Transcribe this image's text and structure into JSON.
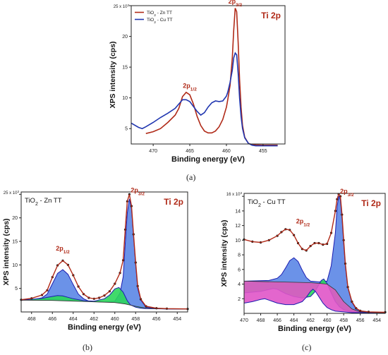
{
  "figure": {
    "captions": [
      "(a)",
      "(b)",
      "(c)"
    ]
  },
  "chart_data": [
    {
      "type": "line",
      "panel_caption": "(a)",
      "xlabel": "Binding energy (eV)",
      "ylabel": "XPS intensity (cps)",
      "xlim": [
        473,
        452
      ],
      "ylim": [
        2.5,
        25
      ],
      "y_multiplier_label": "25 x 10",
      "y_multiplier_exp": "3",
      "x_ticks": [
        470,
        465,
        460,
        455
      ],
      "y_ticks": [
        5,
        10,
        15,
        20,
        25
      ],
      "y_tick_labels": [
        "5",
        "10",
        "15",
        "20",
        ""
      ],
      "spectrum_label": "Ti 2p",
      "peak_labels": [
        {
          "base": "2p",
          "sub": "1/2",
          "x": 465.0,
          "y": 11.3
        },
        {
          "base": "2p",
          "sub": "3/2",
          "x": 458.8,
          "y": 25.0
        }
      ],
      "legend_position": "top-left",
      "series": [
        {
          "name": "TiO2 - Zn TT",
          "color": "#b02a18",
          "x": [
            471,
            470,
            469,
            468,
            467,
            466.5,
            466,
            465.5,
            465,
            464.5,
            464,
            463.5,
            463,
            462.5,
            462,
            461.5,
            461,
            460.5,
            460,
            459.8,
            459.5,
            459.2,
            459,
            458.8,
            458.6,
            458.4,
            458.2,
            458,
            457.8,
            457.5,
            457,
            456.5,
            456,
            455,
            454,
            453
          ],
          "y": [
            4.2,
            4.5,
            5.0,
            6.0,
            7.2,
            8.3,
            10.2,
            10.9,
            10.5,
            9.0,
            7.0,
            5.5,
            4.6,
            4.3,
            4.3,
            4.6,
            5.3,
            6.5,
            8.5,
            9.8,
            12.0,
            16.5,
            21.0,
            24.6,
            24.0,
            19.0,
            13.0,
            8.5,
            5.5,
            3.6,
            2.6,
            2.4,
            2.35,
            2.3,
            2.3,
            2.3
          ]
        },
        {
          "name": "TiO2 - Cu TT",
          "color": "#2036b0",
          "x": [
            473,
            472,
            471.5,
            471,
            470,
            469,
            468,
            467,
            466.5,
            466,
            465.5,
            465,
            464.5,
            464,
            463.5,
            463,
            462.5,
            462,
            461.5,
            461,
            460.5,
            460,
            459.8,
            459.5,
            459.2,
            459,
            458.8,
            458.6,
            458.4,
            458.2,
            458,
            457.8,
            457.5,
            457,
            456.5,
            456,
            455,
            454,
            453
          ],
          "y": [
            5.9,
            5.2,
            5.0,
            5.3,
            6.0,
            6.8,
            7.5,
            8.3,
            9.0,
            9.7,
            9.7,
            9.4,
            8.6,
            7.8,
            7.2,
            7.6,
            8.5,
            9.2,
            9.5,
            9.4,
            9.5,
            10.3,
            11.0,
            12.5,
            14.5,
            16.5,
            17.3,
            17.0,
            14.0,
            10.0,
            7.0,
            5.0,
            3.5,
            2.6,
            2.3,
            2.2,
            2.2,
            2.2,
            2.2
          ]
        }
      ]
    },
    {
      "type": "area",
      "panel_caption": "(b)",
      "title": "TiO2 - Zn TT",
      "xlabel": "Binding energy (eV)",
      "ylabel": "XPS intensity (cps)",
      "xlim": [
        469,
        453
      ],
      "ylim": [
        0,
        25.5
      ],
      "y_multiplier_label": "25 x 10",
      "y_multiplier_exp": "3",
      "x_ticks": [
        468,
        466,
        464,
        462,
        460,
        458,
        456,
        454
      ],
      "y_ticks": [
        5,
        10,
        15,
        20,
        25
      ],
      "y_tick_labels": [
        "5",
        "10",
        "15",
        "20",
        ""
      ],
      "spectrum_label": "Ti 2p",
      "peak_labels": [
        {
          "base": "2p",
          "sub": "1/2",
          "x": 465.0,
          "y": 12.6
        },
        {
          "base": "2p",
          "sub": "3/2",
          "x": 457.8,
          "y": 25.0
        }
      ],
      "background": {
        "x": [
          469,
          466,
          464,
          462,
          460,
          459,
          458,
          457,
          456,
          455,
          453
        ],
        "y": [
          2.5,
          2.45,
          2.3,
          2.15,
          2.0,
          1.7,
          1.2,
          0.8,
          0.7,
          0.65,
          0.6
        ]
      },
      "series": [
        {
          "color": "#5b86e5",
          "x": [
            469,
            468,
            467,
            466.5,
            466,
            465.5,
            465,
            464.5,
            464,
            463.5,
            463,
            462.5,
            462,
            461,
            460,
            459.5,
            459.2,
            459,
            458.8,
            458.6,
            458.4,
            458.2,
            458,
            457.8,
            457.5,
            457,
            456,
            455,
            453
          ],
          "y": [
            2.5,
            2.6,
            3.0,
            3.8,
            6.0,
            8.2,
            9.0,
            8.0,
            5.8,
            3.8,
            2.8,
            2.3,
            2.2,
            2.1,
            2.3,
            4.0,
            7.5,
            14.5,
            21.0,
            24.0,
            22.0,
            16.0,
            10.0,
            5.0,
            2.5,
            1.0,
            0.7,
            0.65,
            0.6
          ]
        },
        {
          "color": "#2bd65b",
          "x": [
            469,
            467,
            466,
            465.5,
            465,
            464.5,
            464,
            463,
            462,
            461,
            460.5,
            460,
            459.6,
            459.2,
            458.8,
            458.5,
            458,
            457.5,
            457,
            455,
            453
          ],
          "y": [
            2.5,
            2.9,
            3.3,
            3.5,
            3.4,
            3.1,
            2.8,
            2.4,
            2.3,
            2.8,
            3.6,
            4.9,
            5.2,
            4.2,
            2.4,
            1.5,
            1.0,
            0.8,
            0.7,
            0.65,
            0.6
          ]
        }
      ],
      "envelope": {
        "color": "#b02a18",
        "x": [
          469,
          468,
          467,
          466.5,
          466,
          465.5,
          465,
          464.5,
          464,
          463.5,
          463,
          462.5,
          462,
          461.5,
          461,
          460.5,
          460,
          459.5,
          459.2,
          459,
          458.8,
          458.6,
          458.4,
          458.2,
          458,
          457.8,
          457.5,
          457,
          456,
          455,
          453
        ],
        "y": [
          2.6,
          2.9,
          3.6,
          4.6,
          7.4,
          9.9,
          10.9,
          10.0,
          7.8,
          5.4,
          3.8,
          3.0,
          2.8,
          3.0,
          3.5,
          4.4,
          6.0,
          8.3,
          11.0,
          17.5,
          23.5,
          25.0,
          22.5,
          16.5,
          10.5,
          5.5,
          2.7,
          1.2,
          0.8,
          0.7,
          0.65
        ]
      }
    },
    {
      "type": "area",
      "panel_caption": "(c)",
      "title": "TiO2 - Cu TT",
      "xlabel": "Binding energy (eV)",
      "ylabel": "XPS intensity (cps)",
      "xlim": [
        470,
        453
      ],
      "ylim": [
        0,
        16.4
      ],
      "y_multiplier_label": "16 x 10",
      "y_multiplier_exp": "3",
      "x_ticks": [
        470,
        468,
        466,
        464,
        462,
        460,
        458,
        456,
        454
      ],
      "y_ticks": [
        2,
        4,
        6,
        8,
        10,
        12,
        14,
        16
      ],
      "y_tick_labels": [
        "2",
        "4",
        "6",
        "8",
        "10",
        "12",
        "14",
        ""
      ],
      "spectrum_label": "Ti 2p",
      "peak_labels": [
        {
          "base": "2p",
          "sub": "1/2",
          "x": 462.9,
          "y": 12.0
        },
        {
          "base": "2p",
          "sub": "3/2",
          "x": 457.6,
          "y": 16.1
        }
      ],
      "background": {
        "x": [
          470,
          466,
          462,
          460,
          459,
          458,
          457,
          456,
          455,
          454,
          453
        ],
        "y": [
          4.4,
          4.3,
          4.2,
          4.0,
          3.2,
          1.6,
          0.6,
          0.2,
          0.15,
          0.1,
          0.1
        ]
      },
      "series": [
        {
          "color": "#5b86e5",
          "x": [
            470,
            467,
            466,
            465.5,
            465,
            464.5,
            464,
            463.5,
            463,
            462.5,
            462,
            461,
            460,
            459.5,
            459,
            458.8,
            458.6,
            458.4,
            458.2,
            458,
            457.8,
            457.5,
            457,
            456.5,
            456,
            455,
            453
          ],
          "y": [
            4.4,
            4.5,
            4.8,
            5.3,
            6.2,
            7.2,
            7.6,
            7.1,
            5.9,
            4.9,
            4.4,
            4.3,
            4.4,
            6.5,
            11.0,
            14.5,
            16.0,
            15.5,
            13.0,
            9.5,
            6.5,
            3.5,
            1.5,
            0.6,
            0.3,
            0.15,
            0.1
          ]
        },
        {
          "color": "#2bd65b",
          "x": [
            470,
            468,
            466.5,
            466,
            465.5,
            465,
            464,
            463,
            462,
            461.5,
            461,
            460.7,
            460.4,
            460,
            459.5,
            459,
            458.5,
            458,
            457,
            455,
            453
          ],
          "y": [
            2.8,
            3.0,
            3.4,
            3.3,
            3.0,
            2.7,
            2.3,
            2.1,
            2.3,
            2.9,
            3.9,
            4.5,
            4.7,
            4.1,
            2.8,
            1.6,
            0.9,
            0.5,
            0.2,
            0.1,
            0.1
          ]
        },
        {
          "color": "#e055c8",
          "x": [
            470,
            469,
            468,
            467.5,
            467,
            466.5,
            466,
            465,
            464,
            463,
            462.5,
            462,
            461.7,
            461.4,
            461,
            460.5,
            460,
            459.5,
            459,
            458,
            457,
            455,
            453
          ],
          "y": [
            1.4,
            1.6,
            1.9,
            2.0,
            1.8,
            1.6,
            1.4,
            1.2,
            1.2,
            1.6,
            2.2,
            3.0,
            3.3,
            3.0,
            2.3,
            1.4,
            0.8,
            0.5,
            0.3,
            0.2,
            0.1,
            0.1,
            0.1
          ]
        }
      ],
      "envelope": {
        "color": "#b02a18",
        "x": [
          470,
          469,
          468,
          467,
          466,
          465.5,
          465,
          464.5,
          464,
          463.5,
          463,
          462.5,
          462,
          461.5,
          461,
          460.5,
          460,
          459.5,
          459,
          458.8,
          458.6,
          458.4,
          458.2,
          458,
          457.8,
          457.5,
          457,
          456.5,
          456,
          455,
          453
        ],
        "y": [
          10.1,
          9.8,
          9.7,
          10.0,
          10.6,
          11.1,
          11.5,
          11.4,
          10.7,
          9.6,
          8.8,
          8.6,
          9.2,
          9.6,
          9.6,
          9.4,
          9.5,
          11.0,
          14.0,
          15.6,
          16.3,
          16.0,
          13.5,
          10.0,
          6.8,
          3.6,
          1.6,
          0.7,
          0.35,
          0.2,
          0.15
        ]
      }
    }
  ]
}
